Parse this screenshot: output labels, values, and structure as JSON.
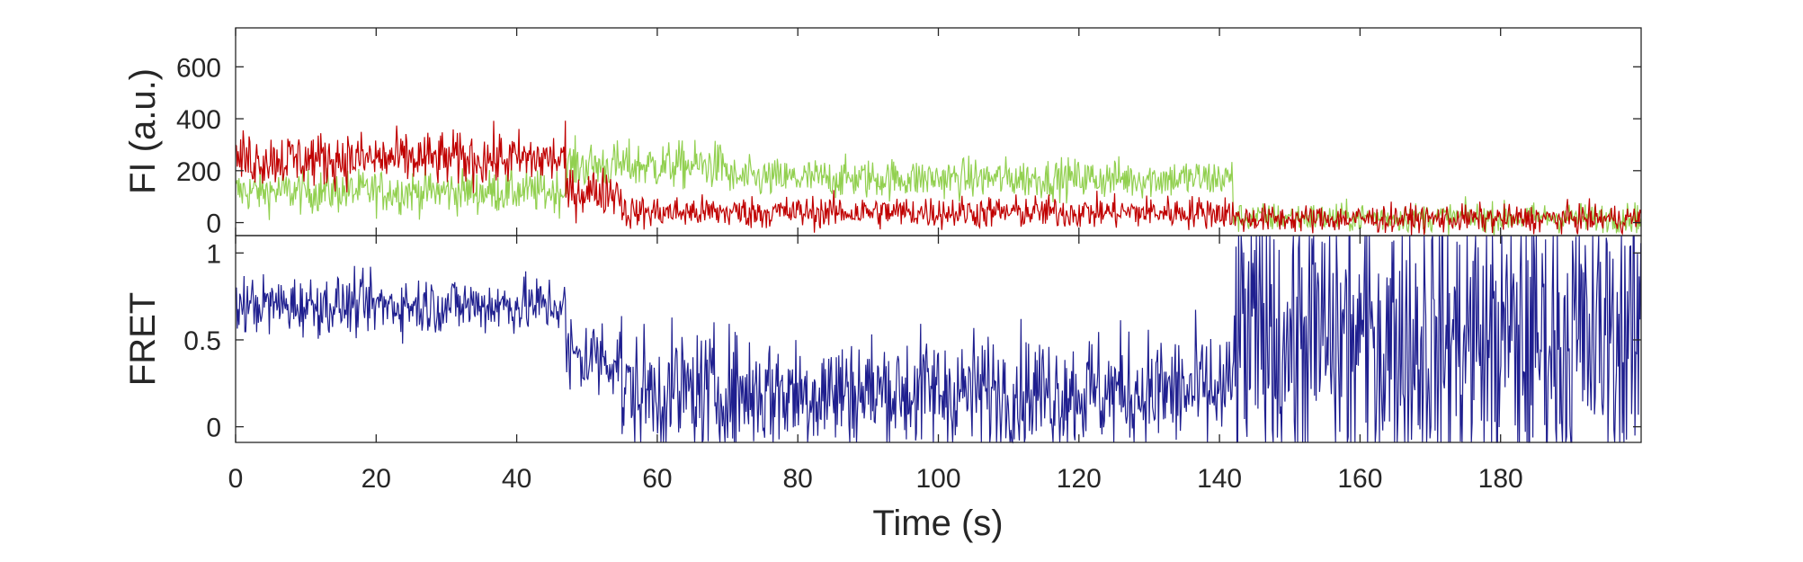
{
  "chart_data": [
    {
      "type": "line",
      "panel": "fluorescence",
      "ylabel": "FI (a.u.)",
      "xlim": [
        0,
        200
      ],
      "ylim": [
        -50,
        750
      ],
      "yticks": [
        0,
        200,
        400,
        600
      ],
      "xticks": [
        0,
        20,
        40,
        60,
        80,
        100,
        120,
        140,
        160,
        180
      ],
      "grid": false,
      "series": [
        {
          "color": "#92d050",
          "segments": [
            {
              "x": [
                0,
                47
              ],
              "mean": 120,
              "noise": 60
            },
            {
              "x": [
                47,
                70
              ],
              "mean": 220,
              "noise": 65
            },
            {
              "x": [
                70,
                142
              ],
              "mean": 170,
              "noise": 55
            },
            {
              "x": [
                142,
                200
              ],
              "mean": 20,
              "noise": 40
            }
          ]
        },
        {
          "color": "#c00000",
          "segments": [
            {
              "x": [
                0,
                47
              ],
              "mean": 245,
              "noise": 75
            },
            {
              "x": [
                47,
                55
              ],
              "mean": 120,
              "noise": 65
            },
            {
              "x": [
                55,
                142
              ],
              "mean": 40,
              "noise": 45
            },
            {
              "x": [
                142,
                200
              ],
              "mean": 15,
              "noise": 38
            }
          ]
        }
      ]
    },
    {
      "type": "line",
      "panel": "fret",
      "ylabel": "FRET",
      "xlabel": "Time (s)",
      "xlim": [
        0,
        200
      ],
      "ylim": [
        -0.09,
        1.1
      ],
      "yticks": [
        0,
        0.5,
        1
      ],
      "yticklabels": [
        "0",
        "0.5",
        "1"
      ],
      "xticks": [
        0,
        20,
        40,
        60,
        80,
        100,
        120,
        140,
        160,
        180
      ],
      "grid": false,
      "series": [
        {
          "color": "#1f1f8f",
          "segments": [
            {
              "x": [
                0,
                47
              ],
              "mean": 0.7,
              "noise": 0.12
            },
            {
              "x": [
                47,
                55
              ],
              "mean": 0.4,
              "noise": 0.18
            },
            {
              "x": [
                55,
                142
              ],
              "mean": 0.2,
              "noise": 0.25
            },
            {
              "x": [
                142,
                200
              ],
              "mean": 0.5,
              "noise": 0.6
            }
          ]
        }
      ]
    }
  ]
}
